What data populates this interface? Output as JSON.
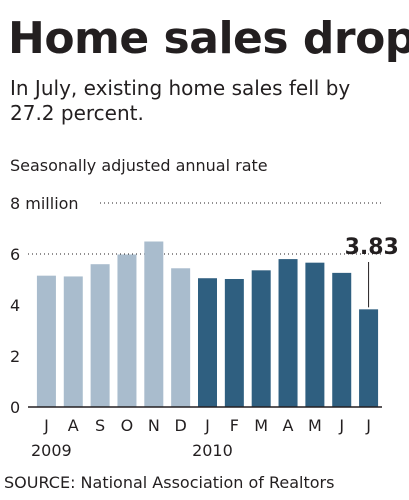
{
  "header": {
    "title": "Home sales drop",
    "subtitle": "In July, existing home sales fell by 27.2 percent."
  },
  "footer": {
    "source": "SOURCE: National Association of Realtors"
  },
  "colors": {
    "light_bar": "#a9bccd",
    "dark_bar": "#2f5f80",
    "text": "#231f20"
  },
  "chart_data": {
    "type": "bar",
    "title": "Home sales drop",
    "subtitle": "In July, existing home sales fell by 27.2 percent.",
    "ylabel": "Seasonally adjusted annual rate",
    "ylim": [
      0,
      8
    ],
    "yticks": [
      {
        "value": 0,
        "label": "0"
      },
      {
        "value": 2,
        "label": "2"
      },
      {
        "value": 4,
        "label": "4"
      },
      {
        "value": 6,
        "label": "6"
      },
      {
        "value": 8,
        "label": "8 million"
      }
    ],
    "grid": "dotted lines at 6 and 8",
    "categories": [
      "J",
      "A",
      "S",
      "O",
      "N",
      "D",
      "J",
      "F",
      "M",
      "A",
      "M",
      "J",
      "J"
    ],
    "year_labels": [
      {
        "label": "2009",
        "start_index": 0
      },
      {
        "label": "2010",
        "start_index": 6
      }
    ],
    "values": [
      5.15,
      5.12,
      5.6,
      5.98,
      6.49,
      5.44,
      5.05,
      5.02,
      5.36,
      5.8,
      5.66,
      5.26,
      3.83
    ],
    "period": [
      "2009",
      "2009",
      "2009",
      "2009",
      "2009",
      "2009",
      "2010",
      "2010",
      "2010",
      "2010",
      "2010",
      "2010",
      "2010"
    ],
    "annotation": {
      "index": 12,
      "label": "3.83"
    }
  }
}
